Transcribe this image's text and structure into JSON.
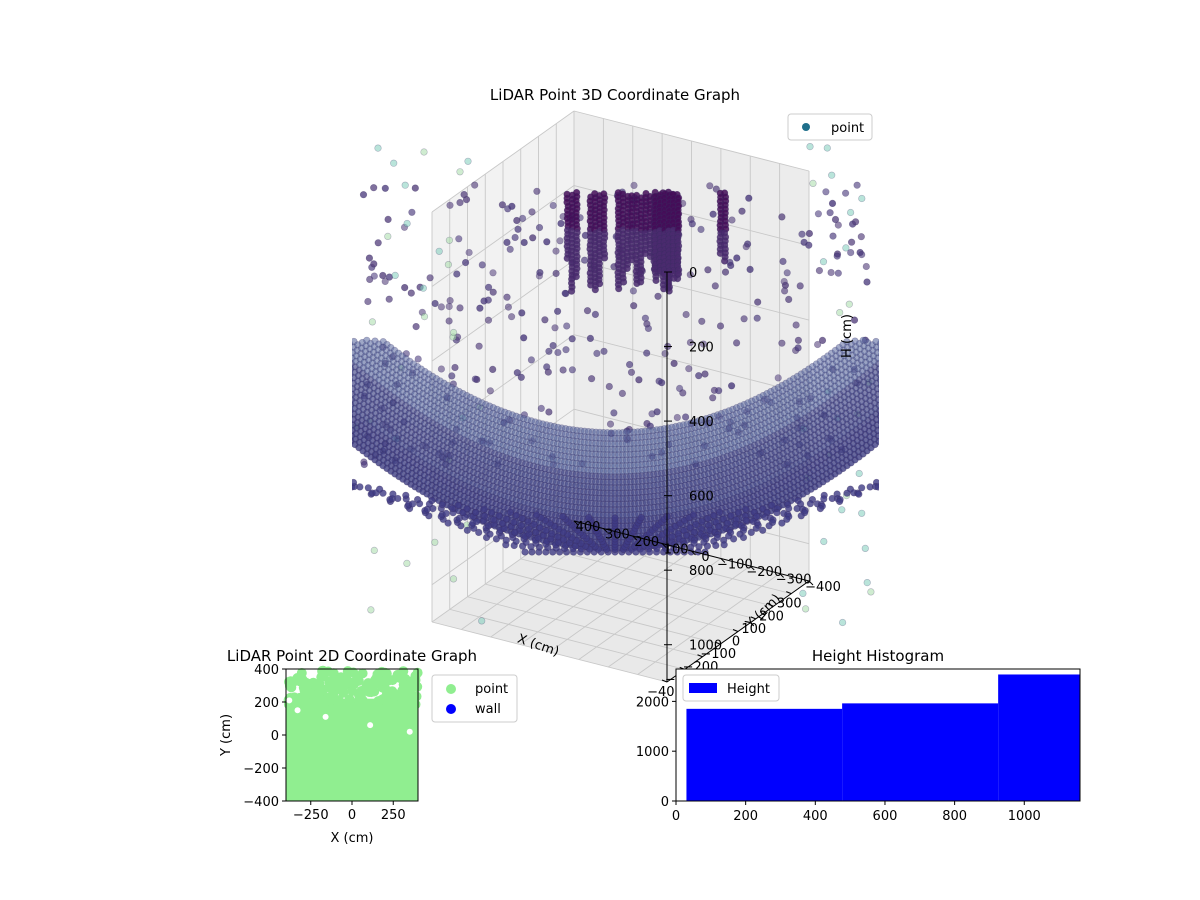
{
  "chart_data": [
    {
      "type": "scatter",
      "title": "LiDAR Point 3D Coordinate Graph",
      "xlabel": "X (cm)",
      "ylabel": "Y (cm)",
      "zlabel": "H (cm)",
      "xlim": [
        -400,
        400
      ],
      "ylim": [
        -400,
        400
      ],
      "zlim": [
        0,
        1100
      ],
      "z_inverted": true,
      "x_ticks": [
        -400,
        -300,
        -200,
        -100,
        0,
        100,
        200,
        300
      ],
      "x_tick_labels": [
        "−400",
        "−300",
        "−200",
        "−100",
        "0",
        "100",
        "200",
        "300"
      ],
      "y_ticks": [
        -400,
        -300,
        -200,
        -100,
        0,
        100,
        200,
        300,
        400
      ],
      "y_tick_labels": [
        "−400",
        "−300",
        "−200",
        "−100",
        "0",
        "100",
        "200",
        "300",
        "400"
      ],
      "z_ticks": [
        0,
        200,
        400,
        600,
        800,
        1000
      ],
      "z_tick_labels": [
        "0",
        "200",
        "400",
        "600",
        "800",
        "1000"
      ],
      "legend": [
        {
          "name": "point",
          "color": "#1f6f8b"
        }
      ],
      "legend_position": "upper-right",
      "colormap": "viridis"
    },
    {
      "type": "scatter",
      "title": "LiDAR Point 2D Coordinate Graph",
      "xlabel": "X (cm)",
      "ylabel": "Y (cm)",
      "xlim": [
        -400,
        400
      ],
      "ylim": [
        -400,
        400
      ],
      "x_ticks": [
        -250,
        0,
        250
      ],
      "x_tick_labels": [
        "−250",
        "0",
        "250"
      ],
      "y_ticks": [
        -400,
        -200,
        0,
        200,
        400
      ],
      "y_tick_labels": [
        "−400",
        "−200",
        "0",
        "200",
        "400"
      ],
      "series": [
        {
          "name": "point",
          "color": "#90ee90"
        },
        {
          "name": "wall",
          "color": "#0000ff"
        }
      ],
      "legend_position": "outside-right"
    },
    {
      "type": "bar",
      "title": "Height Histogram",
      "xlim": [
        0,
        1160
      ],
      "ylim": [
        0,
        2650
      ],
      "x_ticks": [
        0,
        200,
        400,
        600,
        800,
        1000
      ],
      "x_tick_labels": [
        "0",
        "200",
        "400",
        "600",
        "800",
        "1000"
      ],
      "y_ticks": [
        0,
        1000,
        2000
      ],
      "y_tick_labels": [
        "0",
        "1000",
        "2000"
      ],
      "bins": [
        {
          "x0": 30,
          "x1": 477,
          "value": 1850
        },
        {
          "x0": 477,
          "x1": 925,
          "value": 1960
        },
        {
          "x0": 925,
          "x1": 1160,
          "value": 2540
        }
      ],
      "color": "#0000ff",
      "legend": [
        {
          "name": "Height",
          "color": "#0000ff"
        }
      ],
      "legend_position": "upper-left"
    }
  ]
}
